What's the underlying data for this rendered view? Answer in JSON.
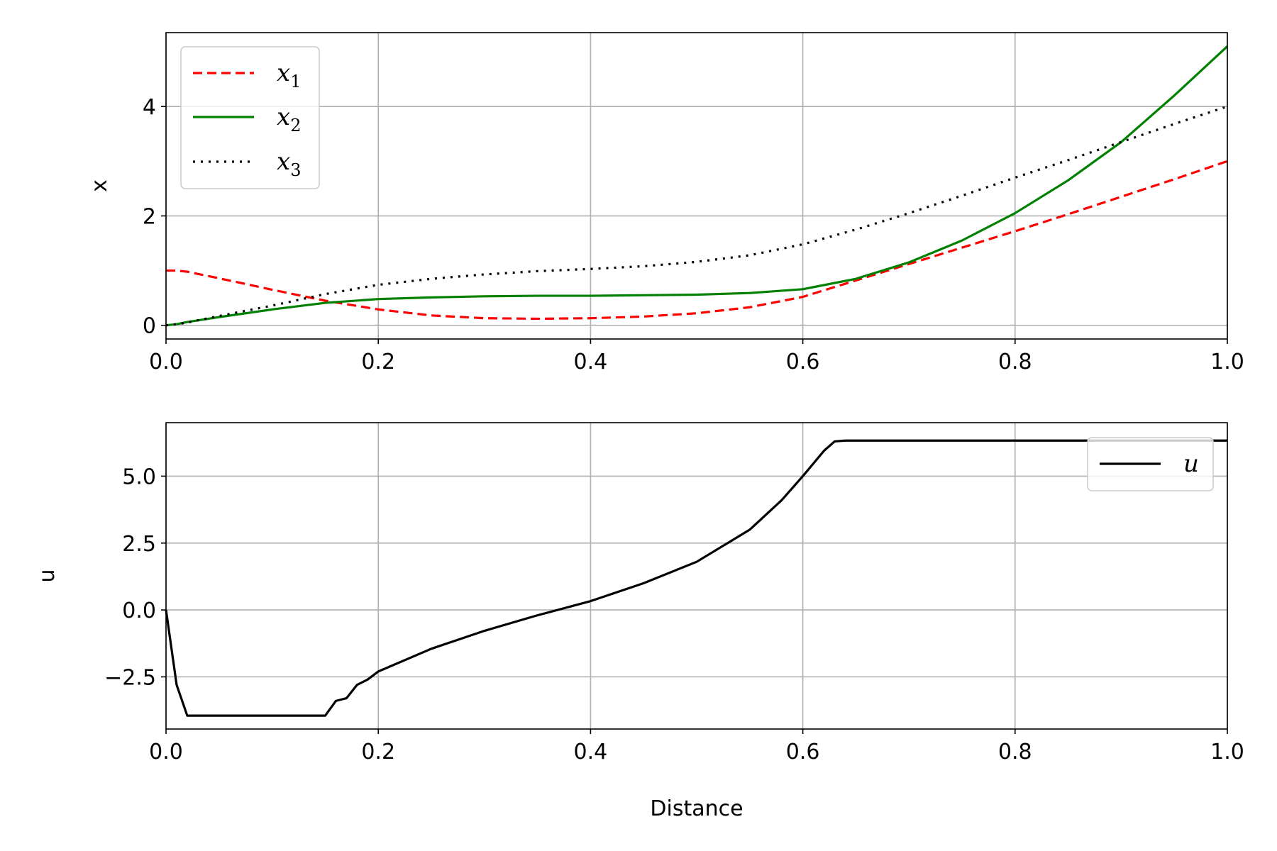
{
  "chart_data": [
    {
      "type": "line",
      "xlabel": "",
      "ylabel": "x",
      "xlim": [
        0,
        1
      ],
      "ylim": [
        -0.25,
        5.35
      ],
      "xticks": [
        "0.0",
        "0.2",
        "0.4",
        "0.6",
        "0.8",
        "1.0"
      ],
      "xtick_values": [
        0,
        0.2,
        0.4,
        0.6,
        0.8,
        1.0
      ],
      "yticks": [
        "0",
        "2",
        "4"
      ],
      "ytick_values": [
        0,
        2,
        4
      ],
      "grid": true,
      "legend": "upper-left",
      "x": [
        0,
        0.01,
        0.02,
        0.05,
        0.1,
        0.15,
        0.2,
        0.25,
        0.3,
        0.35,
        0.4,
        0.45,
        0.5,
        0.55,
        0.6,
        0.65,
        0.7,
        0.75,
        0.8,
        0.85,
        0.9,
        0.95,
        1.0
      ],
      "series": [
        {
          "name": "x",
          "sub": "1",
          "color": "#ff0000",
          "dash": "dashed",
          "values": [
            1.0,
            1.0,
            0.98,
            0.86,
            0.65,
            0.45,
            0.29,
            0.18,
            0.13,
            0.12,
            0.13,
            0.16,
            0.22,
            0.33,
            0.52,
            0.82,
            1.12,
            1.42,
            1.72,
            2.03,
            2.35,
            2.67,
            3.0
          ]
        },
        {
          "name": "x",
          "sub": "2",
          "color": "#008000",
          "dash": "solid",
          "values": [
            0.0,
            0.02,
            0.06,
            0.15,
            0.29,
            0.41,
            0.48,
            0.51,
            0.53,
            0.54,
            0.54,
            0.55,
            0.56,
            0.59,
            0.66,
            0.85,
            1.15,
            1.55,
            2.05,
            2.65,
            3.35,
            4.2,
            5.1
          ]
        },
        {
          "name": "x",
          "sub": "3",
          "color": "#000000",
          "dash": "dotted",
          "values": [
            0.0,
            0.02,
            0.05,
            0.17,
            0.36,
            0.57,
            0.74,
            0.85,
            0.93,
            0.99,
            1.03,
            1.08,
            1.16,
            1.28,
            1.48,
            1.75,
            2.05,
            2.37,
            2.7,
            3.02,
            3.35,
            3.68,
            4.0
          ]
        }
      ]
    },
    {
      "type": "line",
      "xlabel": "Distance",
      "ylabel": "u",
      "xlim": [
        0,
        1
      ],
      "ylim": [
        -4.45,
        7.0
      ],
      "xticks": [
        "0.0",
        "0.2",
        "0.4",
        "0.6",
        "0.8",
        "1.0"
      ],
      "xtick_values": [
        0,
        0.2,
        0.4,
        0.6,
        0.8,
        1.0
      ],
      "yticks": [
        "5.0",
        "2.5",
        "0.0",
        "−2.5"
      ],
      "ytick_values": [
        5.0,
        2.5,
        0.0,
        -2.5
      ],
      "grid": true,
      "legend": "upper-right",
      "x": [
        0,
        0.01,
        0.02,
        0.05,
        0.1,
        0.15,
        0.16,
        0.17,
        0.18,
        0.19,
        0.2,
        0.25,
        0.3,
        0.35,
        0.4,
        0.45,
        0.5,
        0.55,
        0.58,
        0.6,
        0.62,
        0.63,
        0.64,
        0.7,
        0.8,
        0.9,
        1.0
      ],
      "series": [
        {
          "name": "u",
          "sub": "",
          "color": "#000000",
          "dash": "solid",
          "values": [
            0.0,
            -2.8,
            -3.95,
            -3.95,
            -3.95,
            -3.95,
            -3.4,
            -3.3,
            -2.8,
            -2.6,
            -2.3,
            -1.45,
            -0.78,
            -0.2,
            0.33,
            1.0,
            1.8,
            3.0,
            4.1,
            5.0,
            5.95,
            6.3,
            6.33,
            6.33,
            6.33,
            6.33,
            6.33
          ]
        }
      ]
    }
  ]
}
